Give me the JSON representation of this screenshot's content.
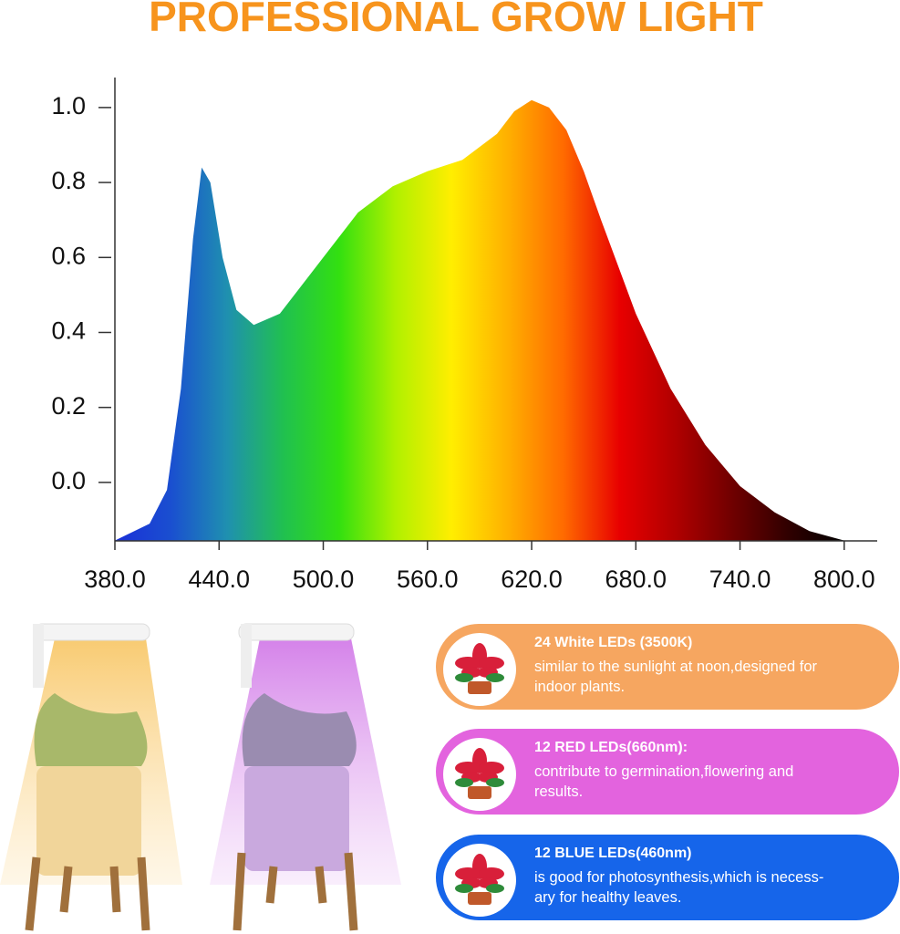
{
  "header": {
    "title": "PROFESSIONAL GROW LIGHT"
  },
  "chart_data": {
    "type": "area",
    "x": [
      380,
      400,
      410,
      418,
      425,
      430,
      435,
      442,
      450,
      460,
      475,
      490,
      500,
      520,
      540,
      560,
      580,
      600,
      610,
      620,
      630,
      640,
      650,
      660,
      680,
      700,
      720,
      740,
      760,
      780,
      800
    ],
    "values": [
      -0.155,
      -0.11,
      -0.02,
      0.25,
      0.65,
      0.84,
      0.8,
      0.6,
      0.46,
      0.42,
      0.45,
      0.54,
      0.6,
      0.72,
      0.79,
      0.83,
      0.86,
      0.93,
      0.99,
      1.02,
      1.0,
      0.94,
      0.83,
      0.7,
      0.45,
      0.25,
      0.1,
      -0.01,
      -0.08,
      -0.13,
      -0.155
    ],
    "colors": [
      "#1a2fd8",
      "#1a4fd0",
      "#1f90b0",
      "#20c050",
      "#33e010",
      "#b0f000",
      "#ffee00",
      "#ffb000",
      "#ff6a00",
      "#e80000",
      "#b00000",
      "#700000",
      "#300000",
      "#000000"
    ],
    "xlim": [
      380,
      819
    ],
    "ylim": [
      -0.156,
      1.08
    ],
    "xticks": [
      {
        "value": 380,
        "label": "380.0"
      },
      {
        "value": 440,
        "label": "440.0"
      },
      {
        "value": 500,
        "label": "500.0"
      },
      {
        "value": 560,
        "label": "560.0"
      },
      {
        "value": 620,
        "label": "620.0"
      },
      {
        "value": 680,
        "label": "680.0"
      },
      {
        "value": 740,
        "label": "740.0"
      },
      {
        "value": 800,
        "label": "800.0"
      }
    ],
    "yticks": [
      {
        "value": 0,
        "label": "0.0"
      },
      0.2,
      0.4,
      0.6,
      0.8,
      {
        "value": 1,
        "label": "1.0"
      }
    ]
  },
  "features": [
    {
      "title": "24 White LEDs  (3500K)",
      "description": [
        "similar to the sunlight at noon,designed for",
        "indoor plants."
      ],
      "color": "#f6a660"
    },
    {
      "title": "12 RED LEDs(660nm):",
      "description": [
        "contribute to germination,flowering and",
        "results."
      ],
      "color": "#e363de"
    },
    {
      "title": "12 BLUE LEDs(460nm)",
      "description": [
        "is good for photosynthesis,which is necess-",
        "ary for healthy leaves."
      ],
      "color": "#1665ea"
    }
  ]
}
